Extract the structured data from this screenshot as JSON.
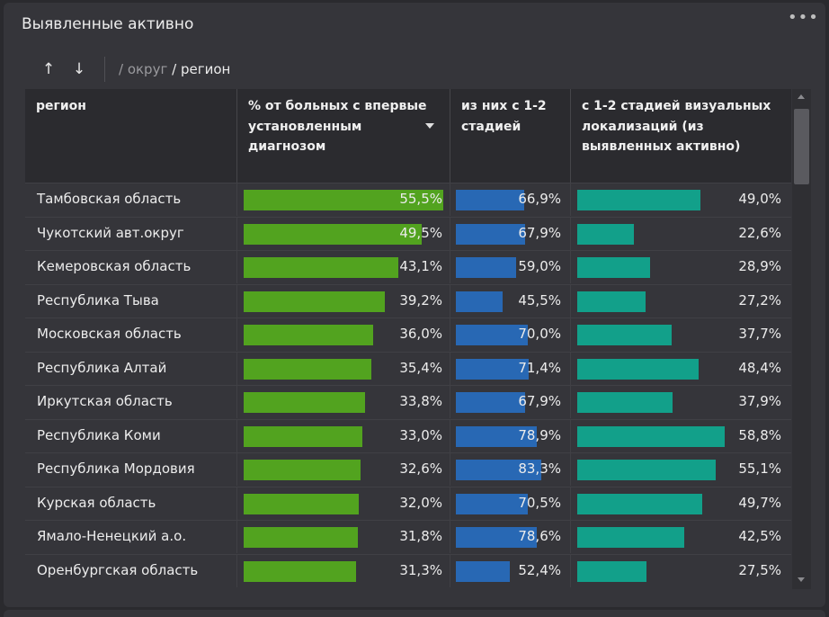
{
  "widget": {
    "title": "Выявленные активно",
    "more_icon": "•••"
  },
  "toolbar": {
    "up_arrow": "↑",
    "down_arrow": "↓",
    "crumb_okrug": "/ округ",
    "crumb_region": "/ регион"
  },
  "table": {
    "columns": {
      "region": "регион",
      "pct": "% от больных с впервые установленным диагнозом",
      "stage": "из них с 1-2 стадией",
      "visual": "с 1-2 стадией визуальных локализаций (из выявленных активно)"
    },
    "colors": {
      "pct_bar": "#52a31f",
      "stage_bar": "#2868b4",
      "visual_bar": "#12a08a"
    },
    "rows": [
      {
        "region": "Тамбовская область",
        "pct": "55,5%",
        "stage": "66,9%",
        "visual": "49,0%"
      },
      {
        "region": "Чукотский авт.округ",
        "pct": "49,5%",
        "stage": "67,9%",
        "visual": "22,6%"
      },
      {
        "region": "Кемеровская область",
        "pct": "43,1%",
        "stage": "59,0%",
        "visual": "28,9%"
      },
      {
        "region": "Республика Тыва",
        "pct": "39,2%",
        "stage": "45,5%",
        "visual": "27,2%"
      },
      {
        "region": "Московская область",
        "pct": "36,0%",
        "stage": "70,0%",
        "visual": "37,7%"
      },
      {
        "region": "Республика Алтай",
        "pct": "35,4%",
        "stage": "71,4%",
        "visual": "48,4%"
      },
      {
        "region": "Иркутская область",
        "pct": "33,8%",
        "stage": "67,9%",
        "visual": "37,9%"
      },
      {
        "region": "Республика Коми",
        "pct": "33,0%",
        "stage": "78,9%",
        "visual": "58,8%"
      },
      {
        "region": "Республика Мордовия",
        "pct": "32,6%",
        "stage": "83,3%",
        "visual": "55,1%"
      },
      {
        "region": "Курская область",
        "pct": "32,0%",
        "stage": "70,5%",
        "visual": "49,7%"
      },
      {
        "region": "Ямало-Ненецкий а.о.",
        "pct": "31,8%",
        "stage": "78,6%",
        "visual": "42,5%"
      },
      {
        "region": "Оренбургская область",
        "pct": "31,3%",
        "stage": "52,4%",
        "visual": "27,5%"
      }
    ]
  }
}
